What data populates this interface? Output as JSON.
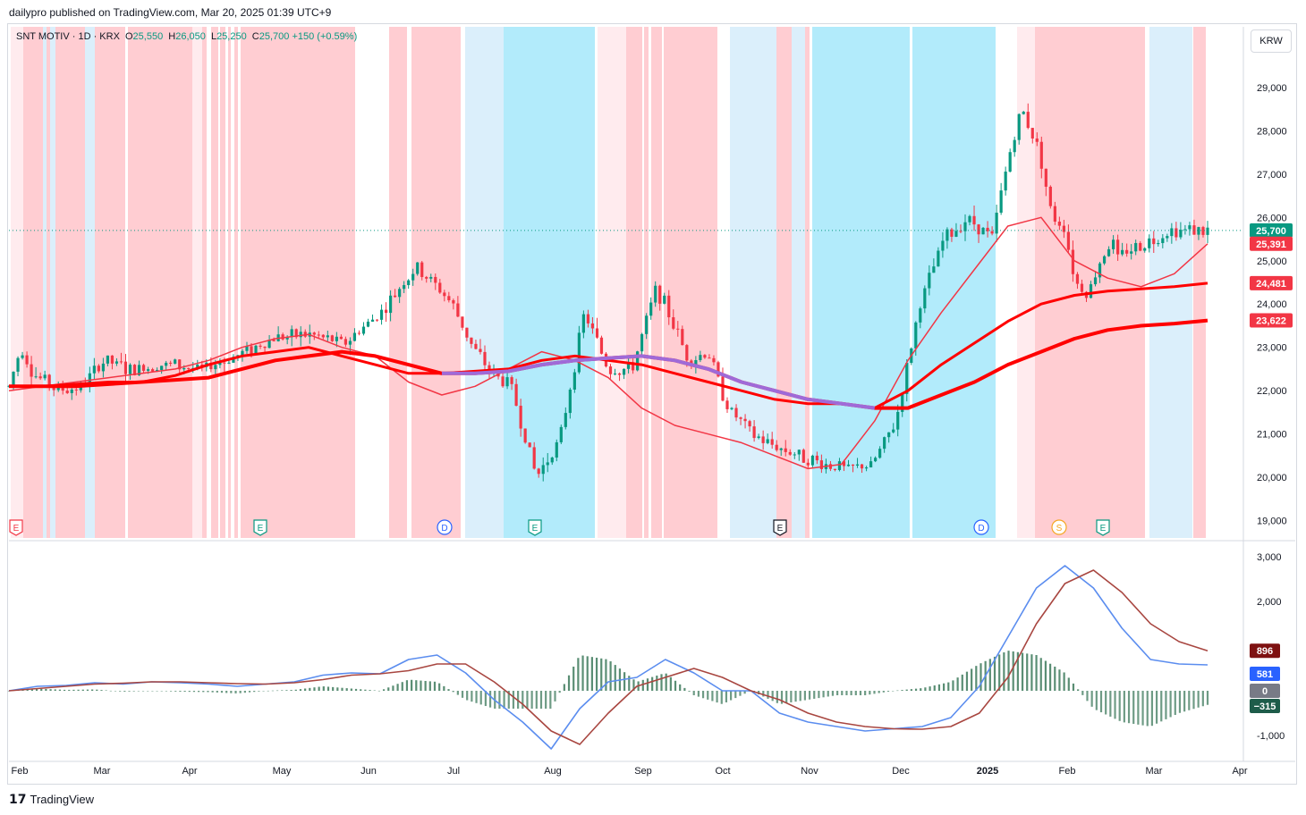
{
  "header": {
    "publisher_line": "dailypro published on TradingView.com, Mar 20, 2025 01:39 UTC+9"
  },
  "legend": {
    "symbol": "SNT MOTIV · 1D · KRX",
    "open_label": "O",
    "open": "25,550",
    "high_label": "H",
    "high": "26,050",
    "low_label": "L",
    "low": "25,250",
    "close_label": "C",
    "close": "25,700",
    "change": "+150 (+0.59%)"
  },
  "currency": "KRW",
  "footer": {
    "brand": "TradingView"
  },
  "colors": {
    "up": "#089981",
    "down": "#f23645",
    "bg_red": "#ffcdd2",
    "bg_lightred": "#ffebee",
    "bg_cyan": "#b2ebfb",
    "bg_lightblue": "#dbeffb",
    "ma_fast": "#f0c27b",
    "ma_mid": "#f23645",
    "ma_slow": "#ff0000",
    "ma_down": "#9575f0",
    "macd": "#5b8def",
    "signal": "#a84640",
    "hist_pos": "#3d7a5c",
    "hist_neg": "#3d7a5c"
  },
  "chart_data": [
    {
      "type": "candlestick",
      "title": "SNT MOTIV · 1D · KRX",
      "x_tick_labels": [
        "Feb",
        "Mar",
        "Apr",
        "May",
        "Jun",
        "Jul",
        "Aug",
        "Sep",
        "Oct",
        "Nov",
        "Dec",
        "2025",
        "Feb",
        "Mar",
        "Apr"
      ],
      "y_tick_labels": [
        "29,000",
        "28,000",
        "27,000",
        "26,000",
        "25,000",
        "24,000",
        "23,000",
        "22,000",
        "21,000",
        "20,000",
        "19,000"
      ],
      "ylim": [
        18600,
        30400
      ],
      "current_price": "25,700",
      "price_labels": [
        {
          "text": "25,700",
          "value": 25700,
          "color": "#089981"
        },
        {
          "text": "25,391",
          "value": 25391,
          "color": "#f23645"
        },
        {
          "text": "24,481",
          "value": 24481,
          "color": "#f23645"
        },
        {
          "text": "23,622",
          "value": 23622,
          "color": "#f23645"
        }
      ],
      "approx_close_series": {
        "t": [
          0,
          0.01,
          0.02,
          0.04,
          0.06,
          0.08,
          0.1,
          0.13,
          0.16,
          0.19,
          0.22,
          0.25,
          0.28,
          0.31,
          0.34,
          0.37,
          0.385,
          0.4,
          0.42,
          0.44,
          0.46,
          0.48,
          0.5,
          0.52,
          0.54,
          0.555,
          0.567,
          0.575,
          0.583,
          0.6,
          0.62,
          0.64,
          0.66,
          0.68,
          0.7,
          0.72,
          0.74,
          0.76,
          0.78,
          0.8,
          0.82,
          0.835,
          0.845,
          0.86,
          0.87,
          0.88,
          0.89,
          0.9,
          0.91,
          0.92,
          0.925,
          0.93,
          0.945,
          0.96,
          0.97,
          0.98,
          0.99,
          1.0
        ],
        "close": [
          22100,
          23000,
          22400,
          22000,
          22100,
          22700,
          22500,
          22600,
          22500,
          22800,
          23200,
          23300,
          23100,
          23800,
          24900,
          24000,
          23100,
          22500,
          22000,
          20000,
          20900,
          23800,
          22500,
          22500,
          24400,
          23500,
          22700,
          22800,
          22900,
          21600,
          21000,
          20700,
          20500,
          20300,
          20200,
          20300,
          21300,
          24000,
          25500,
          26000,
          25500,
          27500,
          28500,
          27500,
          26000,
          25800,
          24500,
          24200,
          25000,
          25500,
          25000,
          25200,
          25400,
          25550,
          25700,
          25700,
          25700,
          25700
        ]
      },
      "overlays": [
        {
          "name": "",
          "color": "#f23645",
          "values": [
            22000,
            22100,
            22200,
            22300,
            22400,
            22500,
            22700,
            23000,
            23200,
            23300,
            23000,
            22800,
            22200,
            21900,
            22100,
            22500,
            22900,
            22700,
            22300,
            21600,
            21200,
            21000,
            20800,
            20500,
            20200,
            20300,
            21300,
            22700,
            23800,
            24800,
            25800,
            26000,
            25000,
            24600,
            24400,
            24700,
            25391
          ]
        },
        {
          "name": "",
          "color": "#ff0000",
          "values": [
            22100,
            22100,
            22150,
            22200,
            22200,
            22350,
            22600,
            22800,
            22900,
            23000,
            22800,
            22600,
            22400,
            22400,
            22450,
            22500,
            22700,
            22800,
            22700,
            22600,
            22400,
            22200,
            22000,
            21800,
            21700,
            21700,
            21600,
            22000,
            22600,
            23100,
            23600,
            24000,
            24200,
            24300,
            24350,
            24400,
            24481
          ]
        },
        {
          "name": "",
          "color": "#ff0000",
          "values": [
            22100,
            22100,
            22100,
            22150,
            22200,
            22250,
            22300,
            22500,
            22700,
            22800,
            22900,
            22800,
            22600,
            22400,
            22400,
            22450,
            22600,
            22700,
            22750,
            22800,
            22700,
            22500,
            22200,
            22000,
            21800,
            21700,
            21600,
            21600,
            21900,
            22200,
            22600,
            22900,
            23200,
            23400,
            23500,
            23550,
            23622
          ]
        }
      ],
      "markers": [
        {
          "letter": "E",
          "color": "#f23645"
        },
        {
          "letter": "E",
          "color": "#089981"
        },
        {
          "letter": "D",
          "color": "#2962ff"
        },
        {
          "letter": "E",
          "color": "#089981"
        },
        {
          "letter": "E",
          "color": "#131722"
        },
        {
          "letter": "D",
          "color": "#2962ff"
        },
        {
          "letter": "S",
          "color": "#f5a623"
        },
        {
          "letter": "E",
          "color": "#089981"
        }
      ]
    },
    {
      "type": "line",
      "title": "",
      "y_tick_labels": [
        "3,000",
        "2,000",
        "",
        "0",
        "-1,000"
      ],
      "ylim": [
        -1500,
        3300
      ],
      "series": [
        {
          "name": "",
          "color": "#5b8def",
          "values": [
            0,
            100,
            120,
            180,
            150,
            200,
            180,
            150,
            100,
            150,
            200,
            350,
            400,
            380,
            700,
            800,
            400,
            -200,
            -700,
            -1300,
            -400,
            200,
            300,
            700,
            400,
            0,
            0,
            -500,
            -700,
            -800,
            -900,
            -850,
            -800,
            -600,
            100,
            1200,
            2300,
            2800,
            2300,
            1400,
            700,
            600,
            581
          ]
        },
        {
          "name": "",
          "color": "#a84640",
          "values": [
            0,
            50,
            100,
            150,
            170,
            200,
            200,
            180,
            160,
            150,
            180,
            250,
            350,
            380,
            450,
            600,
            600,
            200,
            -300,
            -900,
            -1200,
            -500,
            100,
            300,
            500,
            300,
            0,
            -200,
            -500,
            -700,
            -800,
            -850,
            -860,
            -800,
            -500,
            300,
            1500,
            2400,
            2700,
            2200,
            1500,
            1100,
            896
          ]
        }
      ],
      "histogram_values": [
        0,
        50,
        20,
        30,
        -20,
        0,
        -20,
        -30,
        -60,
        0,
        20,
        100,
        50,
        0,
        250,
        200,
        -200,
        -400,
        -400,
        -400,
        800,
        700,
        200,
        400,
        -100,
        -300,
        0,
        -300,
        -200,
        -100,
        -100,
        0,
        60,
        200,
        600,
        900,
        800,
        400,
        -400,
        -700,
        -800,
        -500,
        -315
      ],
      "price_labels": [
        {
          "text": "896",
          "value": 896,
          "color": "#7e1111"
        },
        {
          "text": "581",
          "value": 581,
          "color": "#2962ff"
        },
        {
          "text": "0",
          "value": 0,
          "color": "#787b86"
        },
        {
          "text": "−315",
          "value": -315,
          "color": "#1e5c4a"
        }
      ]
    }
  ]
}
